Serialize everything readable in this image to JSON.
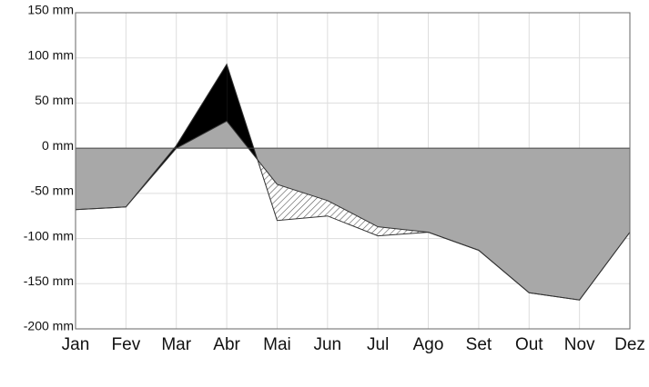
{
  "chart_data": {
    "type": "area",
    "categories": [
      "Jan",
      "Fev",
      "Mar",
      "Abr",
      "Mai",
      "Jun",
      "Jul",
      "Ago",
      "Set",
      "Out",
      "Nov",
      "Dez"
    ],
    "series": [
      {
        "color": "#000000",
        "values": [
          -68,
          -65,
          3,
          93,
          -80,
          -75,
          -97,
          -93,
          -113,
          -160,
          -168,
          -93
        ]
      },
      {
        "color": "#a8a8a8",
        "values": [
          -68,
          -65,
          0,
          30,
          -40,
          -58,
          -87,
          -93,
          -113,
          -160,
          -168,
          -93
        ]
      }
    ],
    "ylim": [
      -200,
      150
    ],
    "yticks": [
      {
        "value": -200,
        "label": "-200 mm"
      },
      {
        "value": -150,
        "label": "-150 mm"
      },
      {
        "value": -100,
        "label": "-100 mm"
      },
      {
        "value": -50,
        "label": "-50 mm"
      },
      {
        "value": 0,
        "label": "0 mm"
      },
      {
        "value": 50,
        "label": "50 mm"
      },
      {
        "value": 100,
        "label": "100 mm"
      },
      {
        "value": 150,
        "label": "150 mm"
      }
    ],
    "grid": true
  }
}
